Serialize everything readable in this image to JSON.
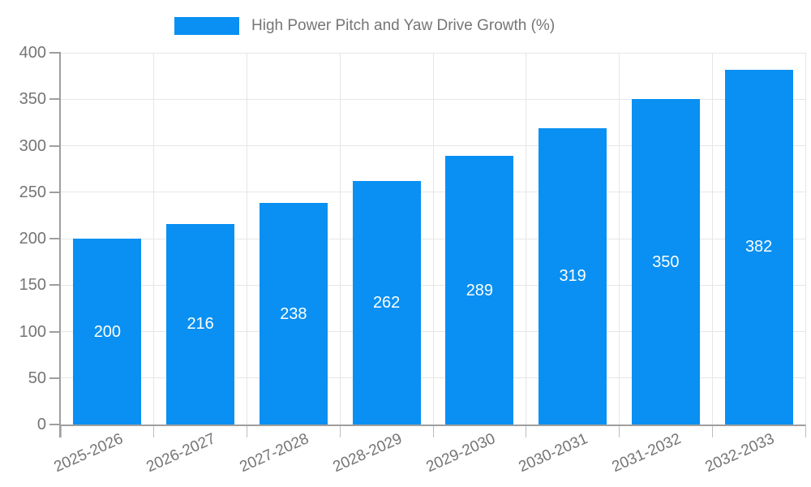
{
  "legend": {
    "label": "High Power Pitch and Yaw Drive Growth (%)"
  },
  "chart_data": {
    "type": "bar",
    "title": "High Power Pitch and Yaw Drive Growth (%)",
    "categories": [
      "2025-2026",
      "2026-2027",
      "2027-2028",
      "2028-2029",
      "2029-2030",
      "2030-2031",
      "2031-2032",
      "2032-2033"
    ],
    "values": [
      200,
      216,
      238,
      262,
      289,
      319,
      350,
      382
    ],
    "value_labels_shown": true,
    "xlabel": "",
    "ylabel": "",
    "ylim": [
      0,
      400
    ],
    "yticks": [
      0,
      50,
      100,
      150,
      200,
      250,
      300,
      350,
      400
    ],
    "grid": true,
    "legend_position": "top",
    "colors": {
      "bar": "#0990F2",
      "grid": "#e6e6e6",
      "axis": "#9e9e9e",
      "tick_stub": "#bdbdbd",
      "tick_label": "#757575",
      "value_label": "#ffffff",
      "background": "#ffffff"
    }
  }
}
